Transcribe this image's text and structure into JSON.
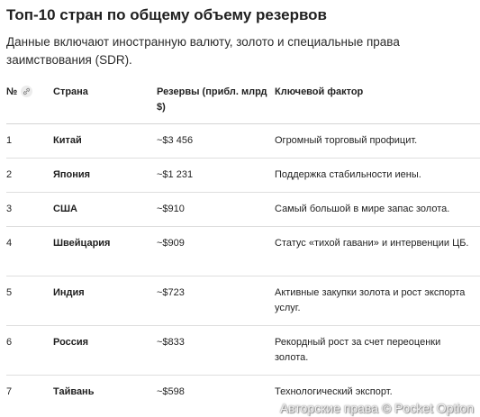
{
  "header": {
    "title": "Топ-10 стран по общему объему резервов",
    "subtitle": "Данные включают иностранную валюту, золото и специальные права заимствования (SDR)."
  },
  "table": {
    "columns": {
      "num": "№",
      "country": "Страна",
      "reserves": "Резервы (прибл. млрд $)",
      "factor": "Ключевой фактор"
    },
    "rows": [
      {
        "num": "1",
        "country": "Китай",
        "reserves": "~$3 456",
        "factor": "Огромный торговый профицит."
      },
      {
        "num": "2",
        "country": "Япония",
        "reserves": "~$1 231",
        "factor": "Поддержка стабильности иены."
      },
      {
        "num": "3",
        "country": "США",
        "reserves": "~$910",
        "factor": "Самый большой в мире запас золота."
      },
      {
        "num": "4",
        "country": "Швейцария",
        "reserves": "~$909",
        "factor": "Статус «тихой гавани» и интервенции ЦБ."
      },
      {
        "num": "5",
        "country": "Индия",
        "reserves": "~$723",
        "factor": "Активные закупки золота и рост экспорта услуг."
      },
      {
        "num": "6",
        "country": "Россия",
        "reserves": "~$833",
        "factor": "Рекордный рост за счет переоценки золота."
      },
      {
        "num": "7",
        "country": "Тайвань",
        "reserves": "~$598",
        "factor": "Технологический экспорт."
      }
    ]
  },
  "icons": {
    "link": "link-icon"
  },
  "watermark": "Авторские права © Pocket Option"
}
